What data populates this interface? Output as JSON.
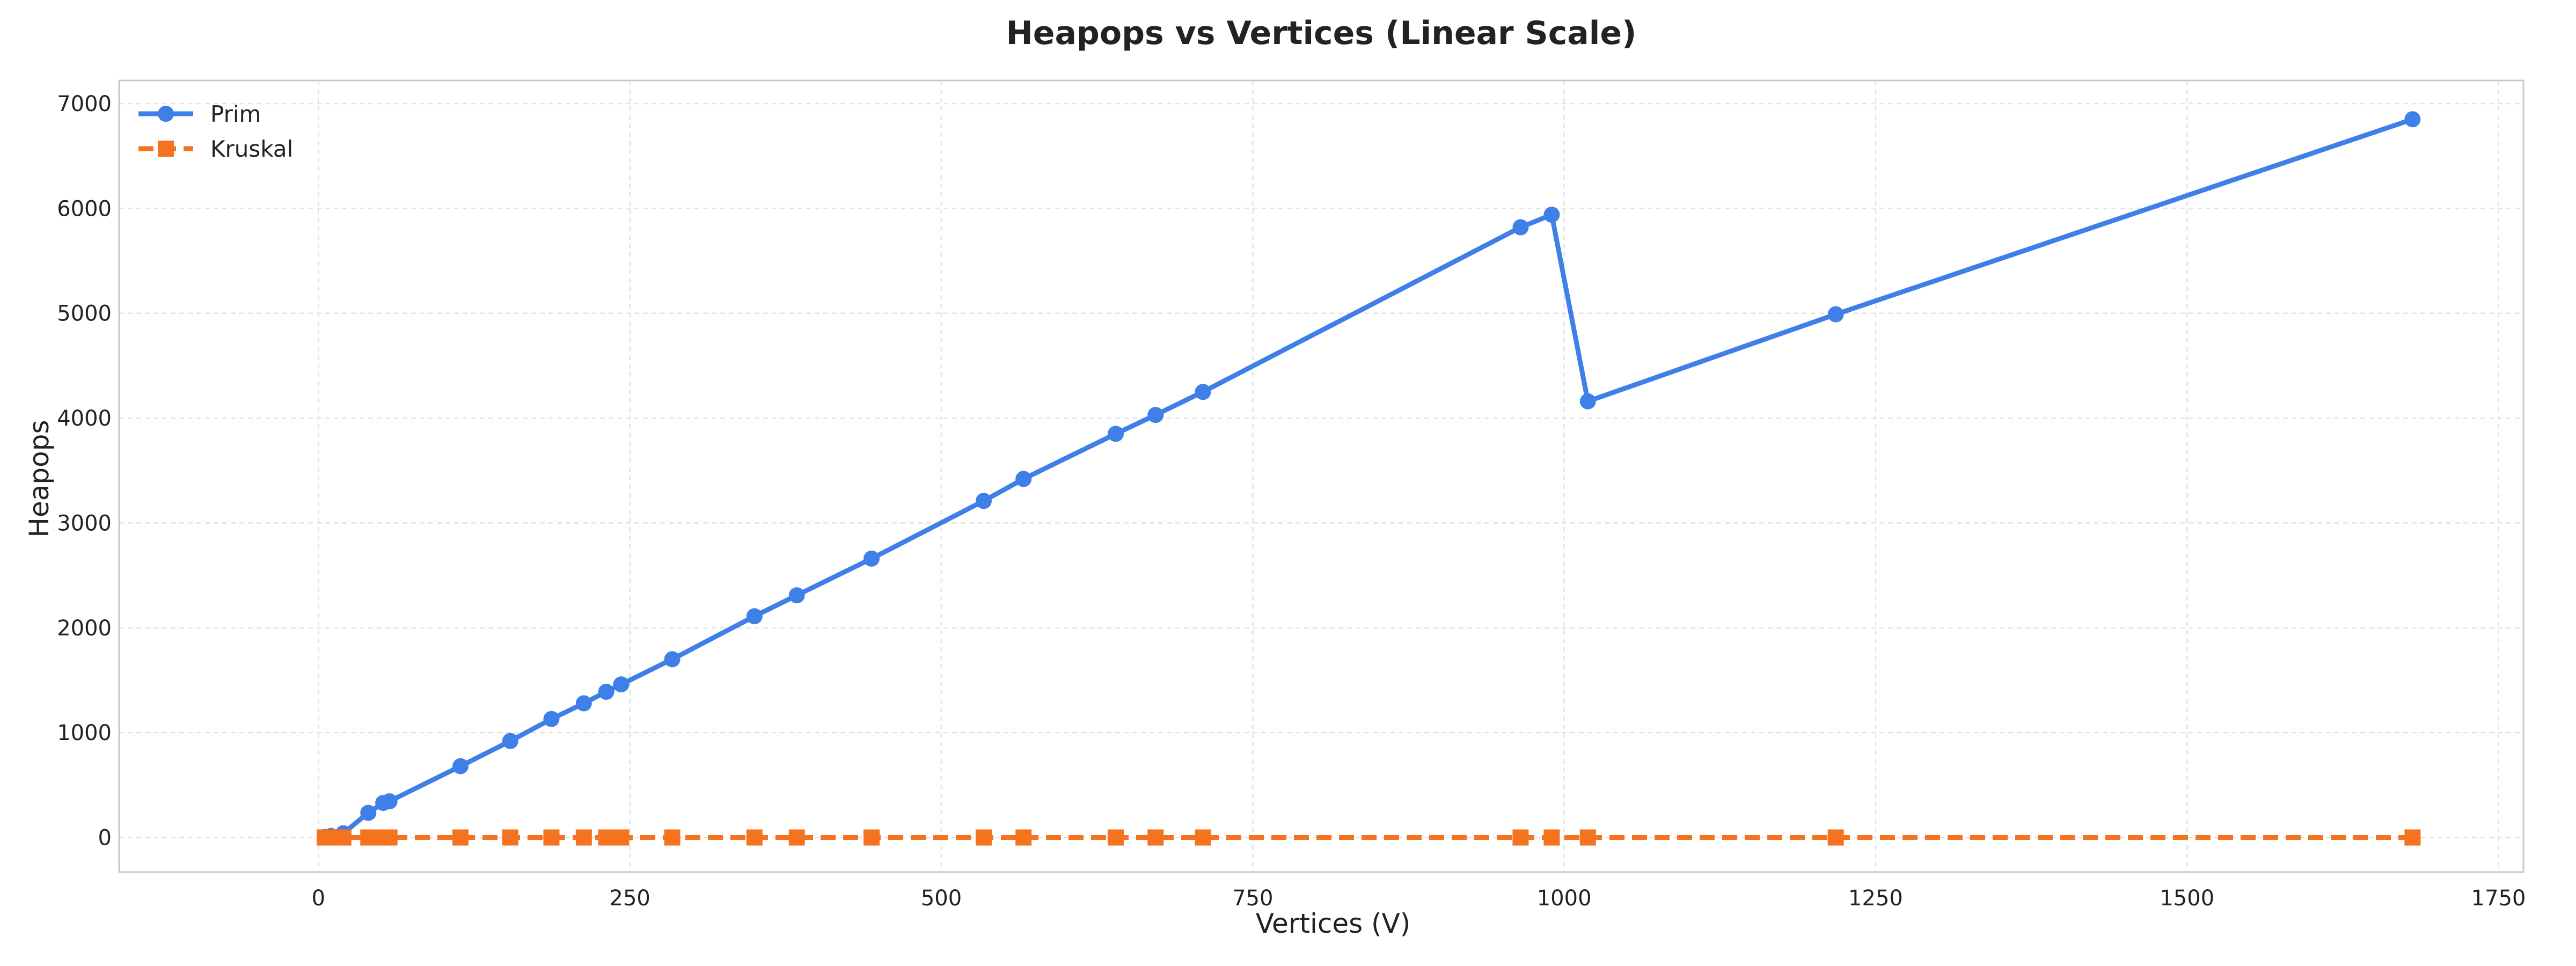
{
  "chart_data": {
    "type": "line",
    "title": "Heapops vs Vertices (Linear Scale)",
    "xlabel": "Vertices (V)",
    "ylabel": "Heapops",
    "xlim": [
      -160,
      1770
    ],
    "ylim": [
      -330,
      7220
    ],
    "xticks": [
      0,
      250,
      500,
      750,
      1000,
      1250,
      1500,
      1750
    ],
    "yticks": [
      0,
      1000,
      2000,
      3000,
      4000,
      5000,
      6000,
      7000
    ],
    "grid": true,
    "legend_position": "top-left",
    "series": [
      {
        "name": "Prim",
        "color": "#3f7fe8",
        "marker": "circle",
        "linestyle": "solid",
        "x": [
          5,
          10,
          20,
          40,
          52,
          57,
          114,
          154,
          187,
          213,
          231,
          243,
          284,
          350,
          384,
          444,
          534,
          566,
          640,
          672,
          710,
          965,
          990,
          1019,
          1218,
          1681
        ],
        "y": [
          5,
          15,
          40,
          235,
          330,
          345,
          680,
          920,
          1130,
          1280,
          1390,
          1460,
          1700,
          2110,
          2310,
          2660,
          3210,
          3420,
          3850,
          4030,
          4250,
          5820,
          5940,
          4160,
          4990,
          6850
        ]
      },
      {
        "name": "Kruskal",
        "color": "#f5731f",
        "marker": "square",
        "linestyle": "dashed",
        "x": [
          5,
          10,
          20,
          40,
          52,
          57,
          114,
          154,
          187,
          213,
          231,
          243,
          284,
          350,
          384,
          444,
          534,
          566,
          640,
          672,
          710,
          965,
          990,
          1019,
          1218,
          1681
        ],
        "y": [
          0,
          0,
          0,
          0,
          0,
          0,
          0,
          0,
          0,
          0,
          0,
          0,
          0,
          0,
          0,
          0,
          0,
          0,
          0,
          0,
          0,
          0,
          0,
          0,
          0,
          0
        ]
      }
    ]
  }
}
